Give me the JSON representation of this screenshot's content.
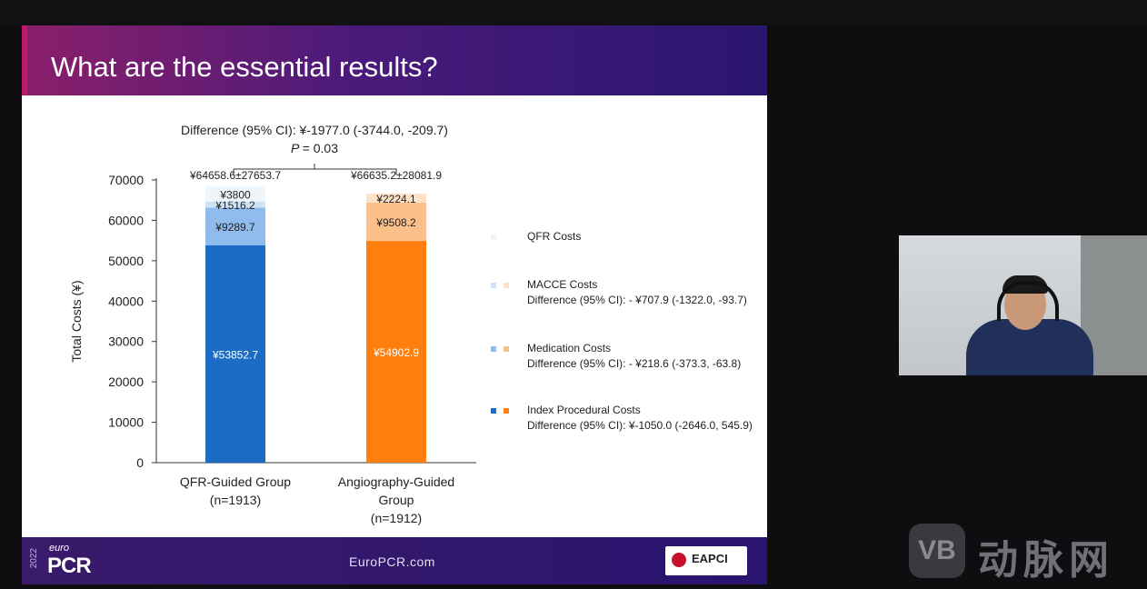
{
  "slide": {
    "title": "What are the essential results?",
    "website": "EuroPCR.com",
    "brand_euro": "euro",
    "brand_pcr": "PCR",
    "brand_year": "2022",
    "eapci": "EAPCI"
  },
  "watermark": {
    "logo": "VB",
    "text": "动脉网"
  },
  "chart_data": {
    "type": "bar",
    "stacked": true,
    "difference_label": "Difference (95% CI): ¥-1977.0 (-3744.0, -209.7)",
    "p_label": "P",
    "p_value": "= 0.03",
    "ylabel": "Total Costs (¥)",
    "ylim": [
      0,
      70000
    ],
    "yticks": [
      "0",
      "10000",
      "20000",
      "30000",
      "40000",
      "50000",
      "60000",
      "70000"
    ],
    "categories": [
      {
        "lines": [
          "QFR-Guided Group",
          "(n=1913)"
        ],
        "total_label": "¥64658.6±27653.7"
      },
      {
        "lines": [
          "Angiography-Guided",
          "Group",
          "(n=1912)"
        ],
        "total_label": "¥66635.2±28081.9"
      }
    ],
    "series": [
      {
        "name": "Index Procedural Costs",
        "values": [
          53852.7,
          54902.9
        ],
        "labels": [
          "¥53852.7",
          "¥54902.9"
        ],
        "colors": [
          "#1a6cc4",
          "#ff7f0e"
        ]
      },
      {
        "name": "Medication Costs",
        "values": [
          9289.7,
          9508.2
        ],
        "labels": [
          "¥9289.7",
          "¥9508.2"
        ],
        "colors": [
          "#8fbcec",
          "#fbbf8a"
        ]
      },
      {
        "name": "MACCE Costs",
        "values": [
          1516.2,
          2224.1
        ],
        "labels": [
          "¥1516.2",
          "¥2224.1"
        ],
        "colors": [
          "#cfe3f6",
          "#fde2c8"
        ]
      },
      {
        "name": "QFR Costs",
        "values": [
          3800,
          0
        ],
        "labels": [
          "¥3800",
          ""
        ],
        "colors": [
          "#eef6fc",
          "#ffffff"
        ]
      }
    ],
    "legend": [
      {
        "name": "QFR Costs",
        "diff": "",
        "colors": [
          "#eef6fc"
        ]
      },
      {
        "name": "MACCE Costs",
        "diff": "Difference (95% CI): - ¥707.9 (-1322.0, -93.7)",
        "colors": [
          "#cfe3f6",
          "#fde2c8"
        ]
      },
      {
        "name": "Medication Costs",
        "diff": "Difference (95% CI): - ¥218.6 (-373.3, -63.8)",
        "colors": [
          "#8fbcec",
          "#fbbf8a"
        ]
      },
      {
        "name": "Index Procedural Costs",
        "diff": "Difference (95% CI): ¥-1050.0 (-2646.0, 545.9)",
        "colors": [
          "#1a6cc4",
          "#ff7f0e"
        ]
      }
    ],
    "legend_position": "right"
  }
}
